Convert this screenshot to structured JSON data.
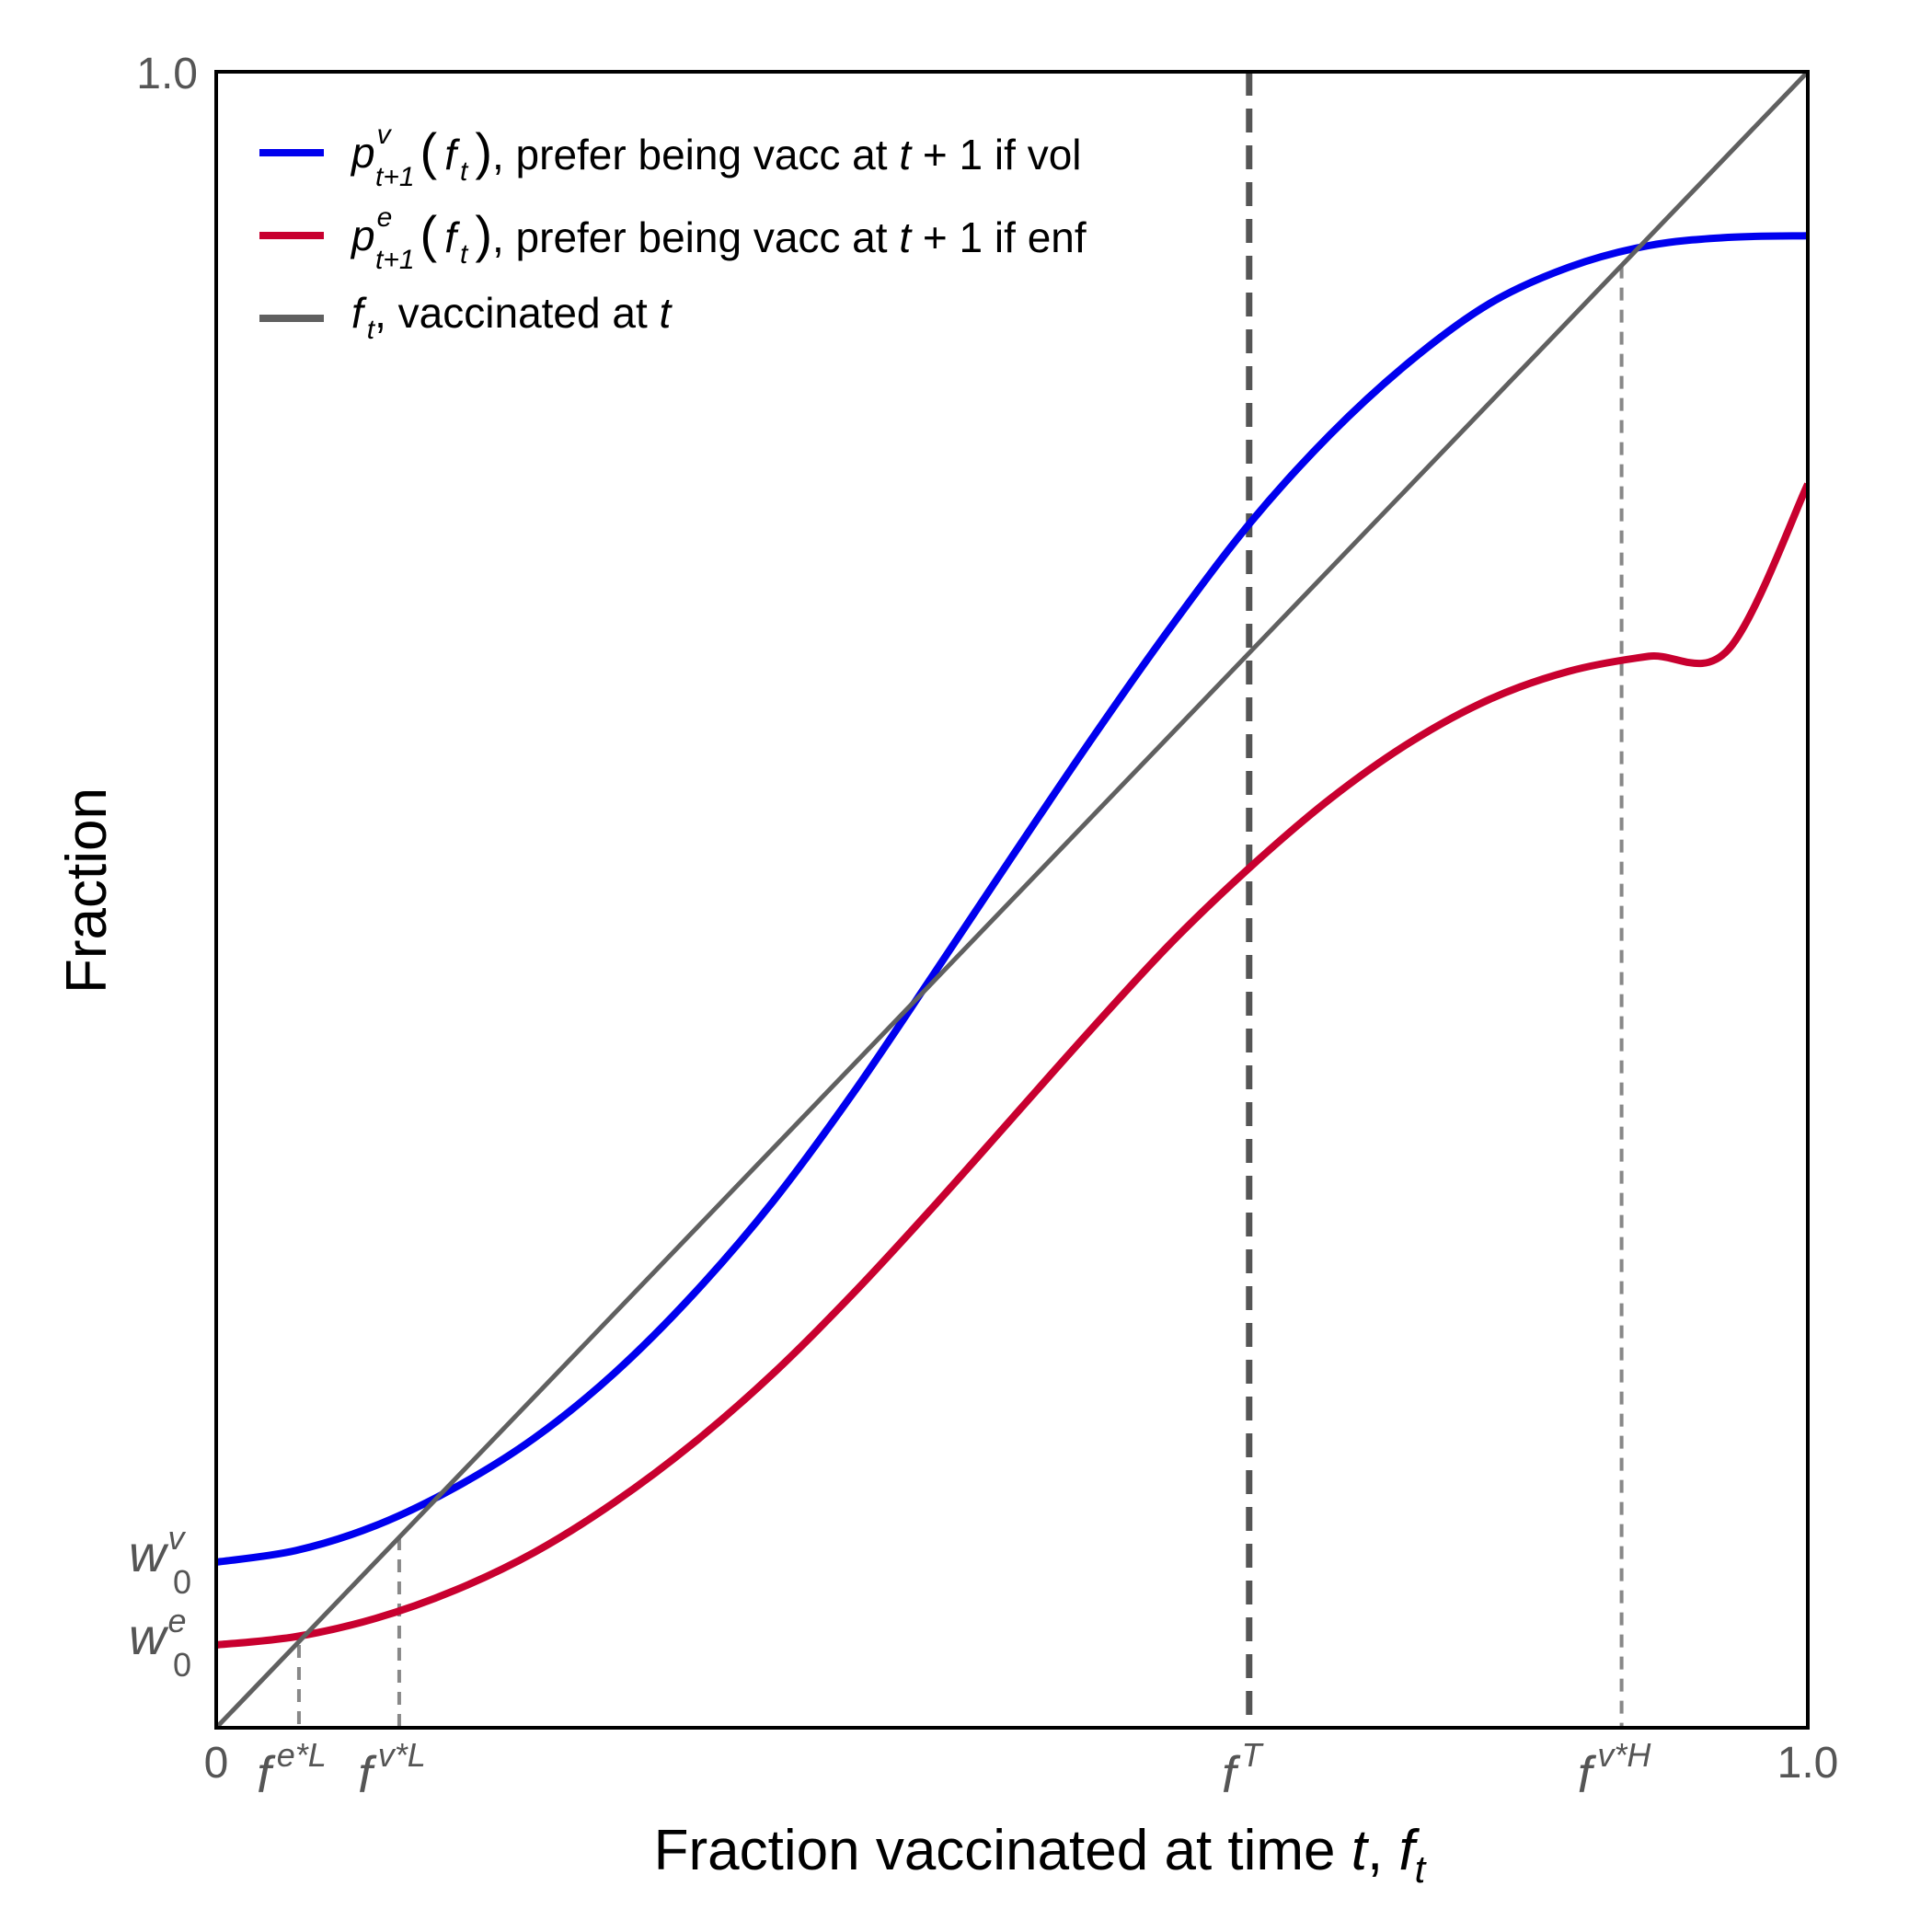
{
  "chart_data": {
    "type": "line",
    "title": "",
    "xlabel": {
      "text": "Fraction vaccinated at time ",
      "var": "t",
      "sep": ", ",
      "sym": "f",
      "sub": "t"
    },
    "ylabel": "Fraction",
    "xlim": [
      0,
      1.0
    ],
    "ylim": [
      0,
      1.0
    ],
    "grid": false,
    "legend_position": "top-left",
    "x_ticks": {
      "min": "0",
      "max": "1.0"
    },
    "y_ticks": {
      "max": "1.0"
    },
    "series": [
      {
        "key": "vol",
        "color": "#0000ee",
        "legend": {
          "sym": "p",
          "sup": "v",
          "sub": "t+1",
          "arg": "f",
          "argsub": "t",
          "text_a": ", prefer being vacc at ",
          "var": "t",
          "text_b": " + 1 if vol"
        },
        "x": [
          0,
          0.05,
          0.1,
          0.15,
          0.2,
          0.25,
          0.3,
          0.35,
          0.4,
          0.45,
          0.5,
          0.55,
          0.6,
          0.65,
          0.7,
          0.75,
          0.8,
          0.85,
          0.9,
          0.95,
          1.0
        ],
        "y": [
          0.1,
          0.107,
          0.122,
          0.145,
          0.175,
          0.214,
          0.262,
          0.318,
          0.383,
          0.454,
          0.526,
          0.597,
          0.665,
          0.728,
          0.781,
          0.825,
          0.86,
          0.882,
          0.895,
          0.9,
          0.901
        ]
      },
      {
        "key": "enf",
        "color": "#c8002f",
        "legend": {
          "sym": "p",
          "sup": "e",
          "sub": "t+1",
          "arg": "f",
          "argsub": "t",
          "text_a": ", prefer being vacc at ",
          "var": "t",
          "text_b": " + 1 if enf"
        },
        "x": [
          0,
          0.05,
          0.1,
          0.15,
          0.2,
          0.25,
          0.3,
          0.35,
          0.4,
          0.45,
          0.5,
          0.55,
          0.6,
          0.65,
          0.7,
          0.75,
          0.8,
          0.85,
          0.9,
          0.95,
          1.0
        ],
        "y": [
          0.05,
          0.055,
          0.066,
          0.083,
          0.106,
          0.136,
          0.172,
          0.214,
          0.262,
          0.314,
          0.368,
          0.422,
          0.474,
          0.52,
          0.561,
          0.595,
          0.621,
          0.638,
          0.647,
          0.651,
          0.751
        ]
      },
      {
        "key": "diag",
        "color": "#606060",
        "legend": {
          "sym": "f",
          "sub": "t",
          "text_a": ", vaccinated at ",
          "var": "t"
        },
        "x": [
          0,
          1.0
        ],
        "y": [
          0,
          1.0
        ]
      }
    ],
    "vertical_lines": [
      {
        "key": "feL",
        "x": 0.052,
        "style": "thin",
        "sym": "f",
        "sup": "e*L"
      },
      {
        "key": "fvL",
        "x": 0.115,
        "style": "thin",
        "sym": "f",
        "sup": "v*L"
      },
      {
        "key": "fT",
        "x": 0.649,
        "style": "thick",
        "sym": "f",
        "sup": "T"
      },
      {
        "key": "fvH",
        "x": 0.883,
        "style": "thin",
        "sym": "f",
        "sup": "v*H"
      }
    ],
    "y_markers": [
      {
        "key": "w0v",
        "y": 0.1,
        "sym": "w",
        "sub": "0",
        "sup": "v"
      },
      {
        "key": "w0e",
        "y": 0.05,
        "sym": "w",
        "sub": "0",
        "sup": "e"
      }
    ]
  }
}
